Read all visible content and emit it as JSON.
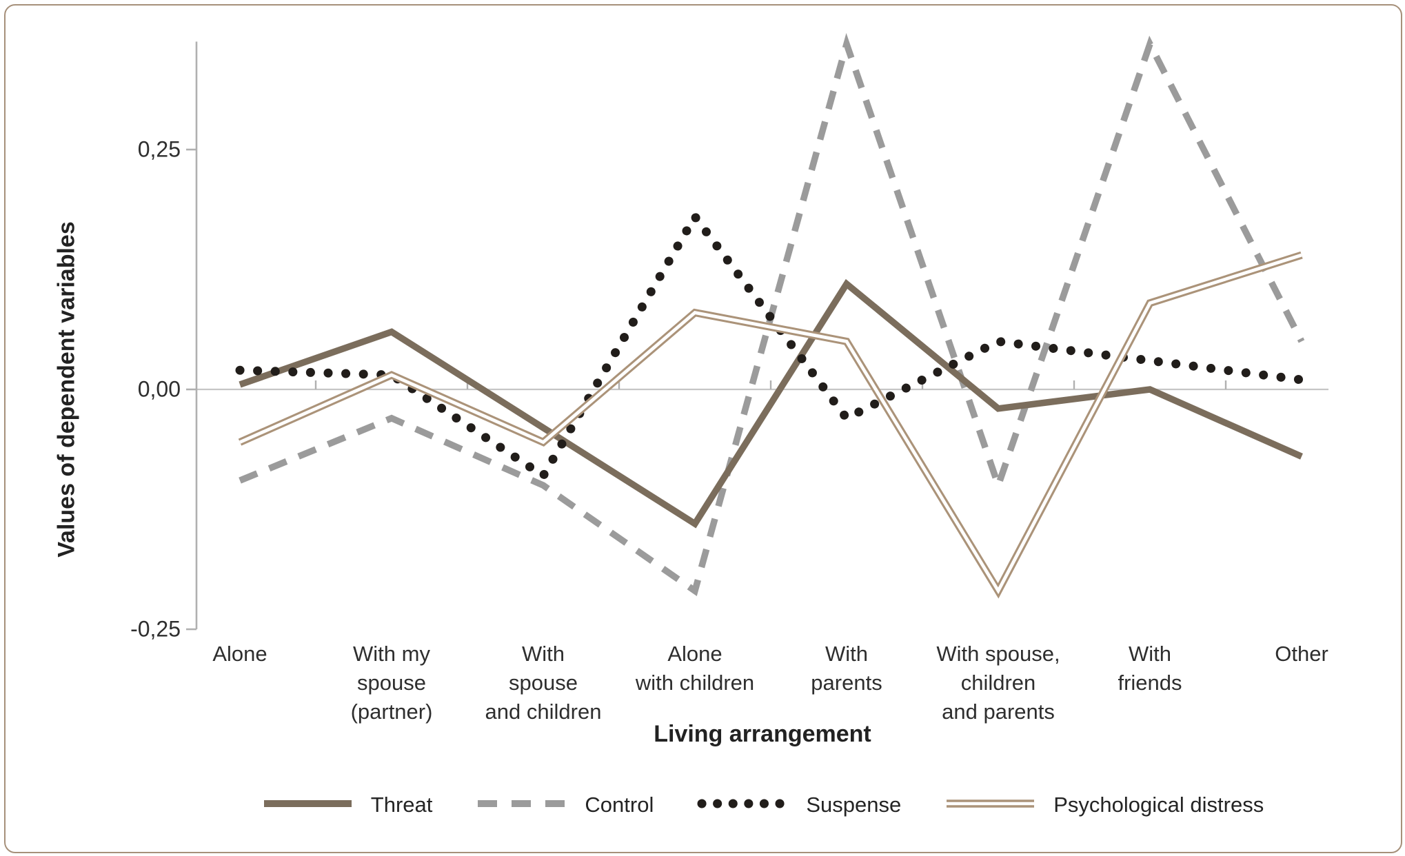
{
  "figure": {
    "background": "#ffffff",
    "border_color": "#a6907a",
    "axis_color": "#b0b0b0",
    "zero_line_color": "#c6c6c6",
    "text_color": "#2a2a2a"
  },
  "chart_data": {
    "type": "line",
    "title": "",
    "xlabel": "Living arrangement",
    "ylabel": "Values of dependent variables",
    "categories": [
      "Alone",
      "With my\nspouse\n(partner)",
      "With\nspouse\nand children",
      "Alone\nwith children",
      "With\nparents",
      "With spouse,\nchildren\nand parents",
      "With\nfriends",
      "Other"
    ],
    "y_ticks": [
      {
        "value": 0.25,
        "label": "0,25"
      },
      {
        "value": 0.0,
        "label": "0,00"
      },
      {
        "value": -0.25,
        "label": "-0,25"
      }
    ],
    "ylim": [
      -0.25,
      0.3625
    ],
    "grid": false,
    "zero_line": true,
    "legend_position": "bottom",
    "decimal_separator": ",",
    "series": [
      {
        "name": "Threat",
        "style": "solid",
        "color": "#7b6d5c",
        "values": [
          0.005,
          0.06,
          -0.04,
          -0.14,
          0.11,
          -0.02,
          0.0,
          -0.07
        ]
      },
      {
        "name": "Control",
        "style": "dashed",
        "color": "#9b9b9b",
        "values": [
          -0.095,
          -0.03,
          -0.1,
          -0.21,
          0.36,
          -0.1,
          0.36,
          0.05
        ]
      },
      {
        "name": "Suspense",
        "style": "dotted",
        "color": "#211d1a",
        "values": [
          0.02,
          0.015,
          -0.09,
          0.18,
          -0.03,
          0.05,
          0.03,
          0.01
        ]
      },
      {
        "name": "Psychological distress",
        "style": "double",
        "color": "#ab9379",
        "values": [
          -0.055,
          0.015,
          -0.055,
          0.08,
          0.05,
          -0.21,
          0.09,
          0.14
        ]
      }
    ]
  }
}
